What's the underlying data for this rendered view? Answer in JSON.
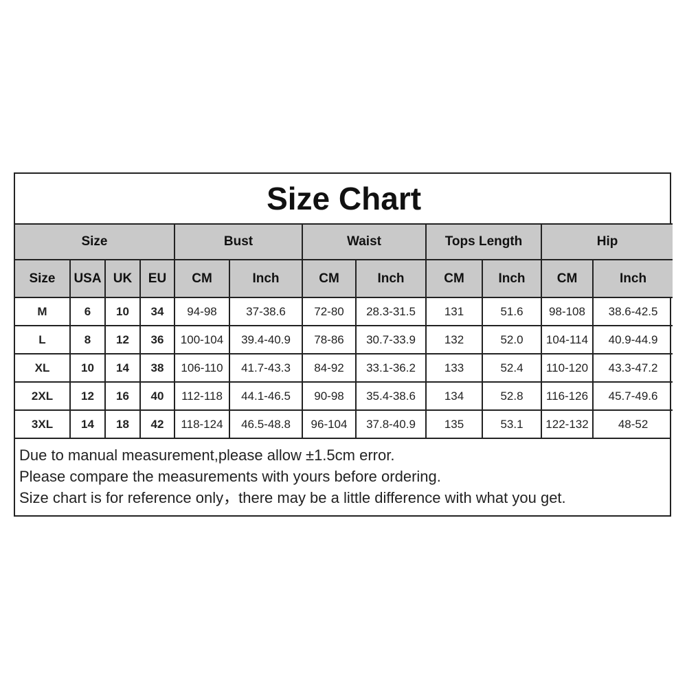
{
  "title": "Size Chart",
  "group_headers": [
    "Size",
    "Bust",
    "Waist",
    "Tops Length",
    "Hip"
  ],
  "sub_headers": [
    "Size",
    "USA",
    "UK",
    "EU",
    "CM",
    "Inch",
    "CM",
    "Inch",
    "CM",
    "Inch",
    "CM",
    "Inch"
  ],
  "rows": [
    [
      "M",
      "6",
      "10",
      "34",
      "94-98",
      "37-38.6",
      "72-80",
      "28.3-31.5",
      "131",
      "51.6",
      "98-108",
      "38.6-42.5"
    ],
    [
      "L",
      "8",
      "12",
      "36",
      "100-104",
      "39.4-40.9",
      "78-86",
      "30.7-33.9",
      "132",
      "52.0",
      "104-114",
      "40.9-44.9"
    ],
    [
      "XL",
      "10",
      "14",
      "38",
      "106-110",
      "41.7-43.3",
      "84-92",
      "33.1-36.2",
      "133",
      "52.4",
      "110-120",
      "43.3-47.2"
    ],
    [
      "2XL",
      "12",
      "16",
      "40",
      "112-118",
      "44.1-46.5",
      "90-98",
      "35.4-38.6",
      "134",
      "52.8",
      "116-126",
      "45.7-49.6"
    ],
    [
      "3XL",
      "14",
      "18",
      "42",
      "118-124",
      "46.5-48.8",
      "96-104",
      "37.8-40.9",
      "135",
      "53.1",
      "122-132",
      "48-52"
    ]
  ],
  "notes": [
    "Due to manual measurement,please allow ±1.5cm error.",
    "Please compare the measurements with yours before ordering.",
    "Size chart is for reference only，there may be a little difference with what you get."
  ],
  "colors": {
    "header_bg": "#c9c9c9",
    "border": "#222222"
  }
}
